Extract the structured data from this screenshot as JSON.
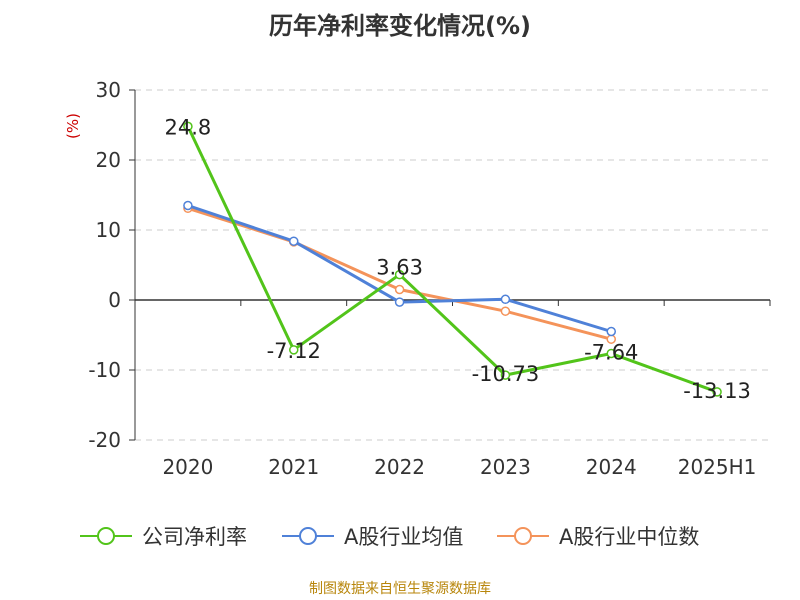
{
  "chart_data": {
    "type": "line",
    "title": "历年净利率变化情况(%)",
    "ylabel": "(%)",
    "xlabel": "",
    "ylim": [
      -20,
      30
    ],
    "yticks": [
      30,
      20,
      10,
      0,
      -10,
      -20
    ],
    "categories": [
      "2020",
      "2021",
      "2022",
      "2023",
      "2024",
      "2025H1"
    ],
    "series": [
      {
        "name": "公司净利率",
        "color": "#52c41a",
        "values": [
          24.8,
          -7.12,
          3.63,
          -10.73,
          -7.64,
          -13.13
        ],
        "labels": [
          "24.8",
          "-7.12",
          "3.63",
          "-10.73",
          "-7.64",
          "-13.13"
        ]
      },
      {
        "name": "A股行业均值",
        "color": "#4f81d8",
        "values": [
          13.5,
          8.4,
          -0.3,
          0.1,
          -4.5,
          null
        ]
      },
      {
        "name": "A股行业中位数",
        "color": "#f4935a",
        "values": [
          13.1,
          8.3,
          1.5,
          -1.6,
          -5.6,
          null
        ]
      }
    ],
    "legend_position": "bottom"
  },
  "source_text": "制图数据来自恒生聚源数据库"
}
